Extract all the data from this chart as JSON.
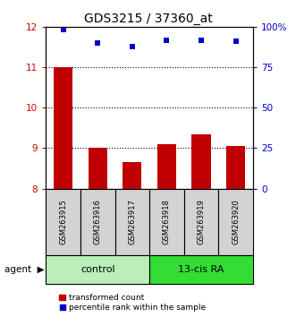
{
  "title": "GDS3215 / 37360_at",
  "samples": [
    "GSM263915",
    "GSM263916",
    "GSM263917",
    "GSM263918",
    "GSM263919",
    "GSM263920"
  ],
  "bar_values": [
    11.0,
    9.0,
    8.65,
    9.1,
    9.35,
    9.05
  ],
  "percentile_values": [
    98.5,
    90.0,
    88.0,
    91.5,
    92.0,
    91.0
  ],
  "bar_color": "#c00000",
  "dot_color": "#0000cc",
  "bar_bottom": 8.0,
  "ylim_left": [
    8.0,
    12.0
  ],
  "ylim_right": [
    0,
    100
  ],
  "yticks_left": [
    8,
    9,
    10,
    11,
    12
  ],
  "yticks_right": [
    0,
    25,
    50,
    75,
    100
  ],
  "yticklabels_right": [
    "0",
    "25",
    "50",
    "75",
    "100%"
  ],
  "groups": [
    {
      "label": "control",
      "indices": [
        0,
        1,
        2
      ],
      "color": "#b8f0b8"
    },
    {
      "label": "13-cis RA",
      "indices": [
        3,
        4,
        5
      ],
      "color": "#33dd33"
    }
  ],
  "group_row_label": "agent",
  "legend_bar_label": "transformed count",
  "legend_dot_label": "percentile rank within the sample",
  "sample_box_color": "#d3d3d3",
  "left_tick_color": "#cc0000",
  "right_tick_color": "#0000cc",
  "dotted_lines": [
    9,
    10,
    11
  ]
}
